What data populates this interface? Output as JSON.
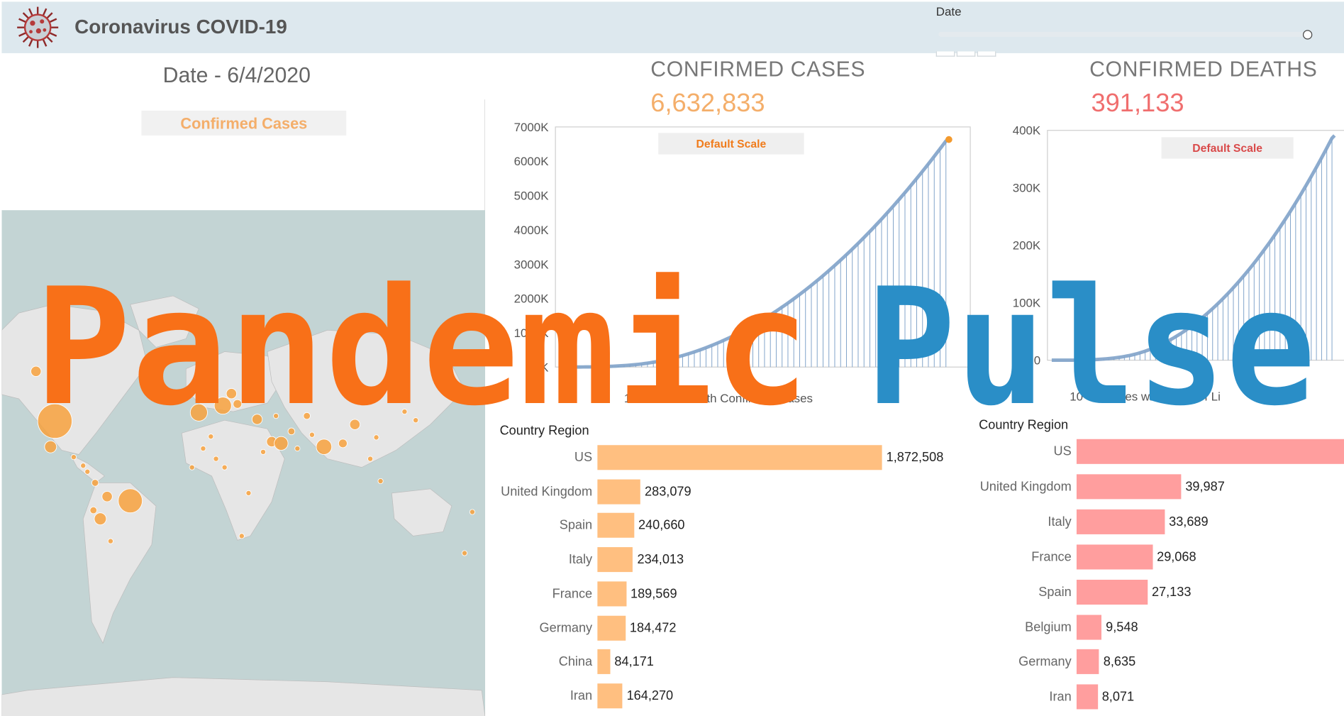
{
  "header": {
    "title": "Coronavirus COVID-19",
    "date_control_label": "Date"
  },
  "date_title": "Date -  6/4/2020",
  "kpis": {
    "cases": {
      "label": "CONFIRMED CASES",
      "value": "6,632,833",
      "color": "#f4ae6a"
    },
    "deaths": {
      "label": "CONFIRMED DEATHS",
      "value": "391,133",
      "color": "#f06e6e"
    }
  },
  "map": {
    "button_label": "Confirmed Cases",
    "bubble_color": "#f7a13d",
    "land_color": "#e6e6e6",
    "water_color": "#c3d4d4"
  },
  "colors": {
    "accent_orange": "#f87018",
    "accent_blue": "#2a8ec7",
    "line_blue": "#7fa2c9",
    "cases_bar": "#ffbf80",
    "deaths_bar": "#ff9e9e"
  },
  "overlay_title": {
    "word1": "Pandemic",
    "word2": "Pulse"
  },
  "chart_data": [
    {
      "type": "line",
      "name": "cases-trend",
      "scale_label": "Default Scale",
      "caption": "10 Countries with Confirmed Cases",
      "yticks": [
        "7000K",
        "6000K",
        "5000K",
        "4000K",
        "3000K",
        "2000K",
        "1000K",
        "0K"
      ],
      "ylim": [
        0,
        7000000
      ],
      "x_days": 135,
      "y": [
        0.1,
        0.1,
        0.2,
        0.3,
        0.5,
        0.8,
        1.2,
        1.7,
        2.4,
        3.3,
        4.3,
        5.5,
        7,
        9,
        11,
        13,
        16,
        19,
        23,
        27,
        32,
        37,
        43,
        49,
        56,
        64,
        72,
        81,
        91,
        102,
        114,
        127,
        141,
        156,
        172,
        189,
        207,
        226,
        246,
        267,
        289,
        312,
        336,
        361,
        387,
        414,
        442,
        471,
        501,
        532,
        564,
        597,
        631,
        666,
        702,
        739,
        777,
        816,
        856,
        897,
        939,
        982,
        1026,
        1071,
        1117,
        1164,
        1212,
        1261,
        1311,
        1362,
        1414,
        1467,
        1521,
        1576,
        1632,
        1689,
        1747,
        1806,
        1866,
        1927,
        1989,
        2052,
        2116,
        2181,
        2247,
        2314,
        2382,
        2451,
        2521,
        2592,
        2664,
        2737,
        2811,
        2886,
        2962,
        3039,
        3117,
        3196,
        3276,
        3357,
        3439,
        3522,
        3606,
        3691,
        3777,
        3864,
        3952,
        4041,
        4131,
        4222,
        4314,
        4407,
        4501,
        4596,
        4692,
        4789,
        4887,
        4986,
        5086,
        5187,
        5289,
        5392,
        5496,
        5601,
        5707,
        5814,
        5922,
        6031,
        6141,
        6252,
        6364,
        6477,
        6591,
        6633
      ],
      "y_unit": "K"
    },
    {
      "type": "line",
      "name": "deaths-trend",
      "scale_label": "Default Scale",
      "caption": "10 Countries with Lines of Li",
      "yticks": [
        "400K",
        "300K",
        "200K",
        "100K",
        "0"
      ],
      "ylim": [
        0,
        400000
      ],
      "x_days": 135,
      "y": [
        0,
        0,
        0,
        0,
        0,
        0,
        0,
        0,
        0,
        0.1,
        0.1,
        0.2,
        0.3,
        0.4,
        0.5,
        0.7,
        0.9,
        1.1,
        1.4,
        1.7,
        2.0,
        2.4,
        2.8,
        3.3,
        3.8,
        4.4,
        5.0,
        5.7,
        6.5,
        7.3,
        8.2,
        9.2,
        10.3,
        11.5,
        12.8,
        14.2,
        15.7,
        17.3,
        19,
        20.8,
        22.7,
        24.7,
        26.8,
        29,
        31.3,
        33.7,
        36.2,
        38.8,
        41.5,
        44.3,
        47.2,
        50.2,
        53.3,
        56.5,
        59.8,
        63.2,
        66.7,
        70.3,
        74,
        77.8,
        81.7,
        85.7,
        89.8,
        94,
        98.3,
        102.7,
        107.2,
        111.8,
        116.5,
        121.3,
        126.2,
        131.2,
        136.3,
        141.5,
        146.8,
        152.2,
        157.7,
        163.3,
        169,
        174.8,
        180.7,
        186.7,
        192.8,
        199,
        205.3,
        211.7,
        218.2,
        224.8,
        231.5,
        238.3,
        245.2,
        252.2,
        259.3,
        266.5,
        273.8,
        281.2,
        288.7,
        296.3,
        304,
        311.8,
        319.7,
        327.7,
        335.8,
        344,
        352.3,
        360.7,
        369.2,
        377.8,
        386.5,
        391.1
      ],
      "y_unit": "K"
    },
    {
      "type": "bar",
      "name": "cases-by-country",
      "header": "Country Region",
      "categories": [
        "US",
        "United Kingdom",
        "Spain",
        "Italy",
        "France",
        "Germany",
        "China",
        "Iran"
      ],
      "values": [
        1872508,
        283079,
        240660,
        234013,
        189569,
        184472,
        84171,
        164270
      ],
      "labels": [
        "1,872,508",
        "283,079",
        "240,660",
        "234,013",
        "189,569",
        "184,472",
        "84,171",
        "164,270"
      ]
    },
    {
      "type": "bar",
      "name": "deaths-by-country",
      "header": "Country Region",
      "categories": [
        "US",
        "United Kingdom",
        "Italy",
        "France",
        "Spain",
        "Belgium",
        "Germany",
        "Iran"
      ],
      "values": [
        108211,
        39987,
        33689,
        29068,
        27133,
        9548,
        8635,
        8071
      ],
      "labels": [
        "",
        "39,987",
        "33,689",
        "29,068",
        "27,133",
        "9,548",
        "8,635",
        "8,071"
      ]
    }
  ]
}
